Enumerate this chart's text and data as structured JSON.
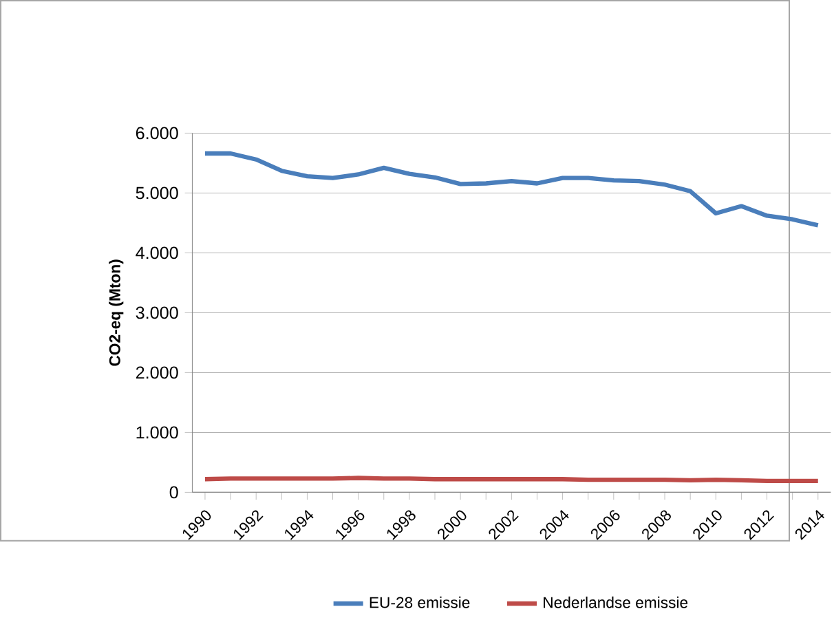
{
  "chart_data": {
    "type": "line",
    "ylabel": "CO2-eq (Mton)",
    "categories": [
      "1990",
      null,
      "1992",
      null,
      "1994",
      null,
      "1996",
      null,
      "1998",
      null,
      "2000",
      null,
      "2002",
      null,
      "2004",
      null,
      "2006",
      null,
      "2008",
      null,
      "2010",
      null,
      "2012",
      null,
      "2014"
    ],
    "series": [
      {
        "name": "EU-28 emissie",
        "color": "#4a7ebb",
        "values": [
          5660,
          5660,
          5560,
          5370,
          5280,
          5250,
          5310,
          5420,
          5320,
          5260,
          5150,
          5160,
          5200,
          5160,
          5250,
          5250,
          5210,
          5200,
          5140,
          5030,
          4660,
          4780,
          4620,
          4560,
          4460
        ]
      },
      {
        "name": "Nederlandse emissie",
        "color": "#be4b48",
        "values": [
          220,
          230,
          230,
          230,
          230,
          230,
          240,
          230,
          230,
          220,
          220,
          220,
          220,
          220,
          220,
          210,
          210,
          210,
          210,
          200,
          210,
          200,
          190,
          190,
          190
        ]
      }
    ],
    "ylim": [
      0,
      6000
    ],
    "yticks": [
      {
        "value": 0,
        "label": "0"
      },
      {
        "value": 1000,
        "label": "1.000"
      },
      {
        "value": 2000,
        "label": "2.000"
      },
      {
        "value": 3000,
        "label": "3.000"
      },
      {
        "value": 4000,
        "label": "4.000"
      },
      {
        "value": 5000,
        "label": "5.000"
      },
      {
        "value": 6000,
        "label": "6.000"
      }
    ],
    "grid": "y",
    "legend": "bottom",
    "marker": "none",
    "line_style": "solid"
  }
}
